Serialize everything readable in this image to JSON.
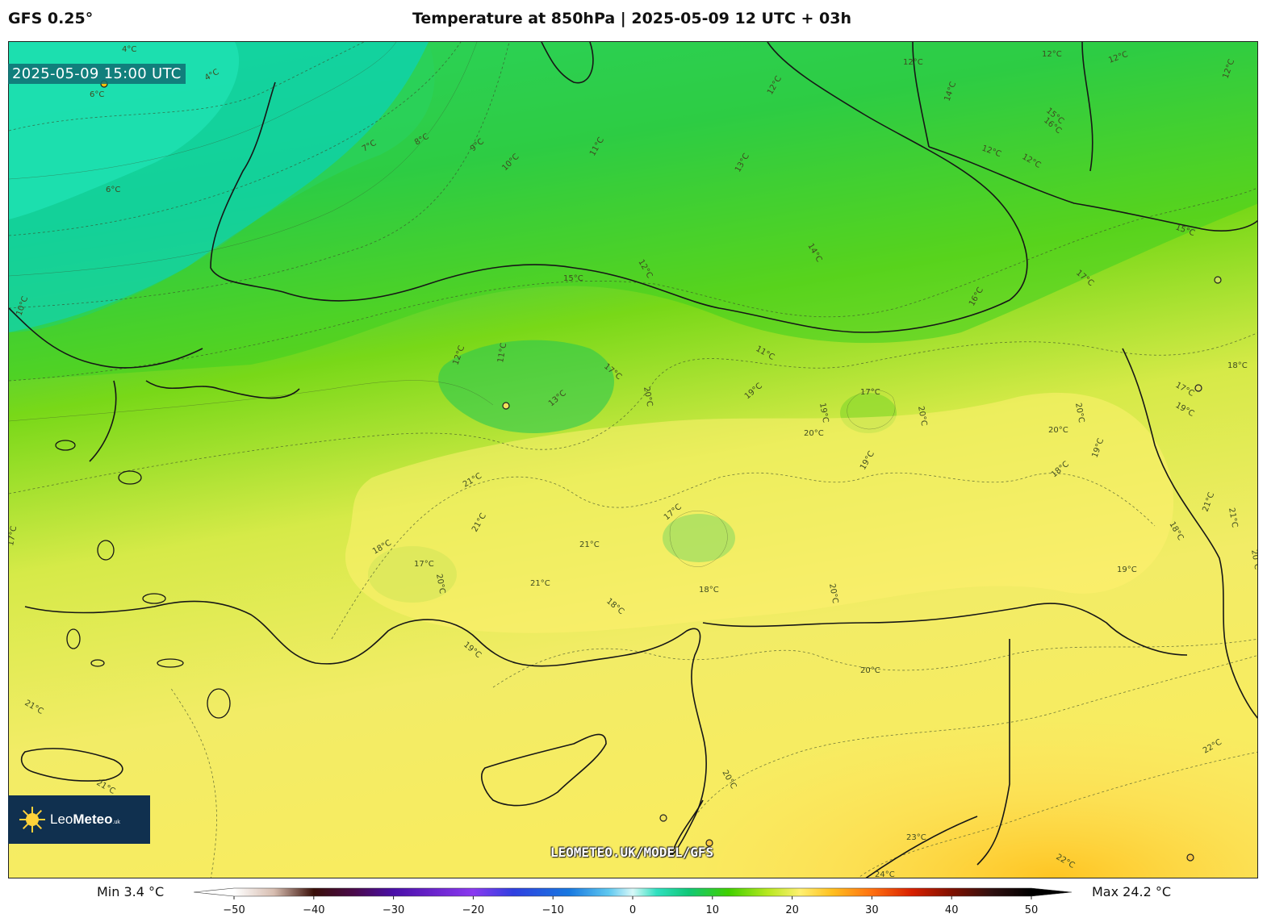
{
  "header": {
    "model": "GFS 0.25°",
    "title": "Temperature at 850hPa | 2025-05-09 12 UTC + 03h"
  },
  "map": {
    "valid_time": "2025-05-09 15:00 UTC",
    "watermark_url": "LEOMETEO.UK/MODEL/GFS",
    "logo": {
      "name_light": "Leo",
      "name_bold": "Meteo",
      "suffix": ".uk"
    },
    "contour_labels": [
      {
        "text": "4°C"
      },
      {
        "text": "4°C"
      },
      {
        "text": "6°C"
      },
      {
        "text": "6°C"
      },
      {
        "text": "7°C"
      },
      {
        "text": "8°C"
      },
      {
        "text": "9°C"
      },
      {
        "text": "10°C"
      },
      {
        "text": "11°C"
      },
      {
        "text": "12°C"
      },
      {
        "text": "13°C"
      },
      {
        "text": "12°C"
      },
      {
        "text": "12°C"
      },
      {
        "text": "12°C"
      },
      {
        "text": "15°C"
      },
      {
        "text": "16°C"
      },
      {
        "text": "12°C"
      },
      {
        "text": "12°C"
      },
      {
        "text": "14°C"
      },
      {
        "text": "15°C"
      },
      {
        "text": "12°C"
      },
      {
        "text": "12°C"
      },
      {
        "text": "11°C"
      },
      {
        "text": "14°C"
      },
      {
        "text": "16°C"
      },
      {
        "text": "17°C"
      },
      {
        "text": "15°C"
      },
      {
        "text": "12°C"
      },
      {
        "text": "11°C"
      },
      {
        "text": "13°C"
      },
      {
        "text": "17°C"
      },
      {
        "text": "20°C"
      },
      {
        "text": "19°C"
      },
      {
        "text": "19°C"
      },
      {
        "text": "17°C"
      },
      {
        "text": "20°C"
      },
      {
        "text": "20°C"
      },
      {
        "text": "19°C"
      },
      {
        "text": "18°C"
      },
      {
        "text": "17°C"
      },
      {
        "text": "18°C"
      },
      {
        "text": "19°C"
      },
      {
        "text": "20°C"
      },
      {
        "text": "21°C"
      },
      {
        "text": "21°C"
      },
      {
        "text": "18°C"
      },
      {
        "text": "17°C"
      },
      {
        "text": "20°C"
      },
      {
        "text": "21°C"
      },
      {
        "text": "21°C"
      },
      {
        "text": "17°C"
      },
      {
        "text": "18°C"
      },
      {
        "text": "18°C"
      },
      {
        "text": "20°C"
      },
      {
        "text": "19°C"
      },
      {
        "text": "20°C"
      },
      {
        "text": "19°C"
      },
      {
        "text": "18°C"
      },
      {
        "text": "21°C"
      },
      {
        "text": "20°C"
      },
      {
        "text": "21°C"
      },
      {
        "text": "21°C"
      },
      {
        "text": "20°C"
      },
      {
        "text": "19°C"
      },
      {
        "text": "20°C"
      },
      {
        "text": "22°C"
      },
      {
        "text": "23°C"
      },
      {
        "text": "24°C"
      },
      {
        "text": "22°C"
      },
      {
        "text": "21°C"
      },
      {
        "text": "17°C"
      },
      {
        "text": "10°C"
      }
    ]
  },
  "colorbar": {
    "min_label": "Min 3.4 °C",
    "max_label": "Max 24.2 °C",
    "ticks": [
      -50,
      -40,
      -30,
      -20,
      -10,
      0,
      10,
      20,
      30,
      40,
      50
    ],
    "range": [
      -50,
      50
    ],
    "stops": [
      {
        "v": -50,
        "c": "#ffffff"
      },
      {
        "v": -45,
        "c": "#d7bdb0"
      },
      {
        "v": -40,
        "c": "#3a0f08"
      },
      {
        "v": -35,
        "c": "#4a0a4a"
      },
      {
        "v": -30,
        "c": "#4a0fa8"
      },
      {
        "v": -20,
        "c": "#8a3af0"
      },
      {
        "v": -15,
        "c": "#3040e0"
      },
      {
        "v": -8,
        "c": "#1878e0"
      },
      {
        "v": -3,
        "c": "#5ec8f0"
      },
      {
        "v": 0,
        "c": "#d8f8f8"
      },
      {
        "v": 3,
        "c": "#30e0c0"
      },
      {
        "v": 7,
        "c": "#10c878"
      },
      {
        "v": 12,
        "c": "#40d000"
      },
      {
        "v": 17,
        "c": "#b8e820"
      },
      {
        "v": 21,
        "c": "#fff070"
      },
      {
        "v": 25,
        "c": "#ffc020"
      },
      {
        "v": 30,
        "c": "#ff7010"
      },
      {
        "v": 35,
        "c": "#d82000"
      },
      {
        "v": 40,
        "c": "#801000"
      },
      {
        "v": 45,
        "c": "#301010"
      },
      {
        "v": 50,
        "c": "#000000"
      }
    ]
  }
}
